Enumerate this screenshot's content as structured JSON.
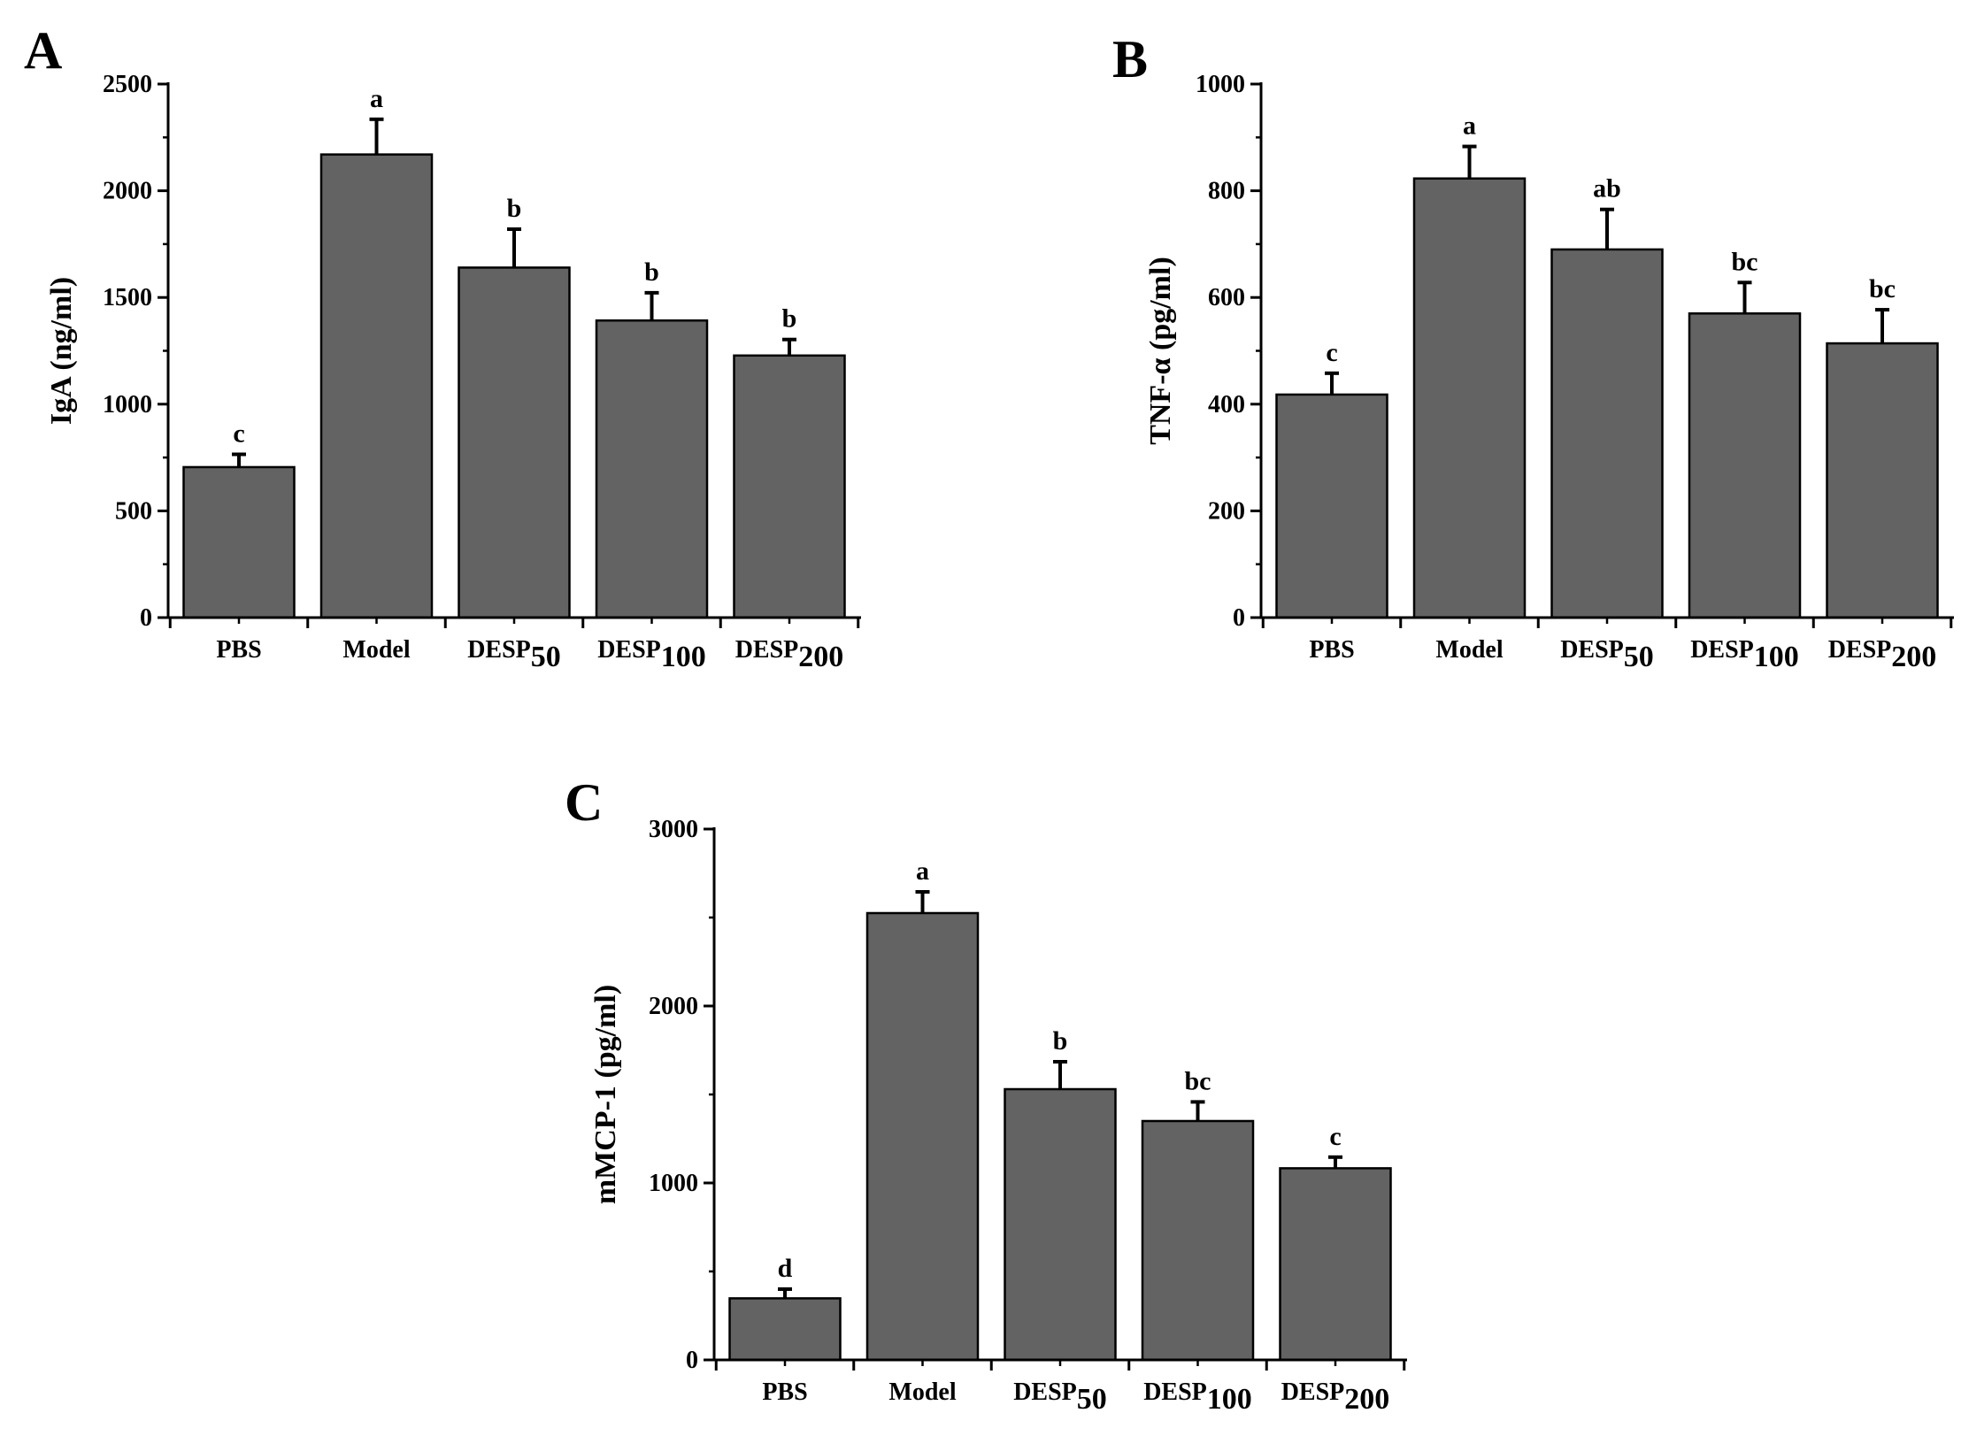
{
  "colors": {
    "bar": "#636363",
    "axis": "#000000",
    "background": "#ffffff"
  },
  "chart_data": [
    {
      "type": "bar",
      "panel_label": "A",
      "title": "",
      "ylabel": "IgA (ng/ml)",
      "xlabel": "",
      "ylim": [
        0,
        2500
      ],
      "yticks": [
        0,
        500,
        1000,
        1500,
        2000,
        2500
      ],
      "ytick_labels": [
        "0",
        "500",
        "1000",
        "1500",
        "2000",
        "2500"
      ],
      "minor_step": 250,
      "categories": [
        {
          "base": "PBS",
          "sub": ""
        },
        {
          "base": "Model",
          "sub": ""
        },
        {
          "base": "DESP",
          "sub": "50"
        },
        {
          "base": "DESP",
          "sub": "100"
        },
        {
          "base": "DESP",
          "sub": "200"
        }
      ],
      "values": [
        705,
        2170,
        1640,
        1392,
        1228
      ],
      "errors": [
        60,
        165,
        180,
        130,
        75
      ],
      "significance": [
        "c",
        "a",
        "b",
        "b",
        "b"
      ]
    },
    {
      "type": "bar",
      "panel_label": "B",
      "title": "",
      "ylabel": "TNF-α (pg/ml)",
      "xlabel": "",
      "ylim": [
        0,
        1000
      ],
      "yticks": [
        0,
        200,
        400,
        600,
        800,
        1000
      ],
      "ytick_labels": [
        "0",
        "200",
        "400",
        "600",
        "800",
        "1000"
      ],
      "minor_step": 100,
      "categories": [
        {
          "base": "PBS",
          "sub": ""
        },
        {
          "base": "Model",
          "sub": ""
        },
        {
          "base": "DESP",
          "sub": "50"
        },
        {
          "base": "DESP",
          "sub": "100"
        },
        {
          "base": "DESP",
          "sub": "200"
        }
      ],
      "values": [
        418,
        823,
        690,
        570,
        514
      ],
      "errors": [
        40,
        60,
        75,
        58,
        63
      ],
      "significance": [
        "c",
        "a",
        "ab",
        "bc",
        "bc"
      ]
    },
    {
      "type": "bar",
      "panel_label": "C",
      "title": "",
      "ylabel": "mMCP-1 (pg/ml)",
      "xlabel": "",
      "ylim": [
        0,
        3000
      ],
      "yticks": [
        0,
        1000,
        2000,
        3000
      ],
      "ytick_labels": [
        "0",
        "1000",
        "2000",
        "3000"
      ],
      "minor_step": 500,
      "categories": [
        {
          "base": "PBS",
          "sub": ""
        },
        {
          "base": "Model",
          "sub": ""
        },
        {
          "base": "DESP",
          "sub": "50"
        },
        {
          "base": "DESP",
          "sub": "100"
        },
        {
          "base": "DESP",
          "sub": "200"
        }
      ],
      "values": [
        348,
        2525,
        1530,
        1350,
        1083
      ],
      "errors": [
        52,
        120,
        155,
        108,
        63
      ],
      "significance": [
        "d",
        "a",
        "b",
        "bc",
        "c"
      ]
    }
  ]
}
